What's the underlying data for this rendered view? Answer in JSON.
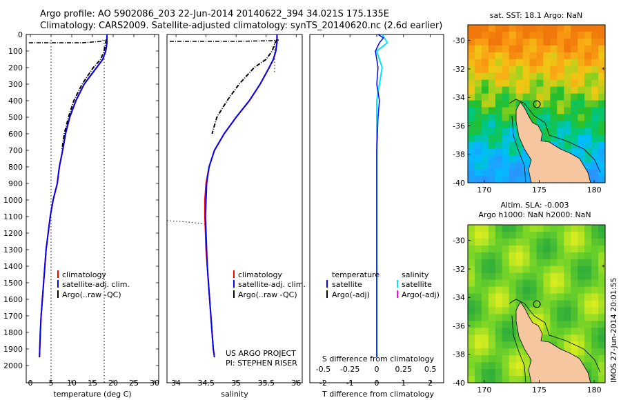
{
  "header": {
    "line1": "Argo profile: AO 5902086_203 22-Jun-2014 20140622_394 34.021S 175.135E",
    "line2": "Climatology: CARS2009. Satellite-adjusted climatology: synTS_20140620.nc (2.6d earlier)"
  },
  "depth_ticks": [
    "0",
    "100",
    "200",
    "300",
    "400",
    "500",
    "600",
    "700",
    "800",
    "900",
    "1000",
    "1100",
    "1200",
    "1300",
    "1400",
    "1500",
    "1600",
    "1700",
    "1800",
    "1900",
    "2000"
  ],
  "colors": {
    "clim": "#ff0000",
    "sat": "#0000ff",
    "argo": "#000000",
    "sat_sal": "#00e5ff",
    "argo_sal": "#ff00ff",
    "land": "#f5c6a0"
  },
  "panels": {
    "temperature": {
      "xlabel": "temperature (deg C)",
      "ticks": [
        "0",
        "5",
        "10",
        "15",
        "20",
        "25",
        "30"
      ],
      "legend": [
        "climatology",
        "satellite-adj. clim.",
        "Argo(..raw -QC)"
      ]
    },
    "salinity": {
      "xlabel": "salinity",
      "ticks": [
        "34",
        "34.5",
        "35",
        "35.5",
        "36"
      ],
      "legend": [
        "climatology",
        "satellite-adj. clim.",
        "Argo(..raw -QC)"
      ],
      "project": "US ARGO PROJECT",
      "pi": "PI: STEPHEN RISER"
    },
    "difference": {
      "xlabel": "T difference from climatology",
      "top_label": "S difference from climatology",
      "s_ticks": [
        "-0.5",
        "-0.25",
        "0",
        "0.25",
        "0.5"
      ],
      "t_ticks": [
        "-2",
        "-1",
        "0",
        "1",
        "2"
      ],
      "leg_head_t": "temperature",
      "leg_head_s": "salinity",
      "leg_t": [
        "satellite",
        "Argo(-adj)"
      ],
      "leg_s": [
        "satellite",
        "Argo(-adj)"
      ]
    }
  },
  "maps": {
    "sst_title": "sat. SST: 18.1  Argo: NaN",
    "sla_title1": "Altim. SLA: -0.003",
    "sla_title2": "Argo h1000: NaN h2000: NaN",
    "lat_ticks": [
      "-30",
      "-32",
      "-34",
      "-36",
      "-38",
      "-40"
    ],
    "lon_ticks": [
      "170",
      "175",
      "180"
    ],
    "stamp": "IMOS 27-Jun-2014 20:01:55"
  },
  "chart_data": [
    {
      "type": "line",
      "title": "",
      "xlabel": "temperature (deg C)",
      "ylabel": "",
      "xlim": [
        -1,
        31
      ],
      "ylim": [
        2050,
        0
      ],
      "series": [
        {
          "name": "climatology",
          "x": [
            18.5,
            18.5,
            18.2,
            17.5,
            16.0,
            13.0,
            11.0,
            9.5,
            8.5,
            7.8,
            7.0,
            6.5,
            5.5,
            4.8,
            4.3,
            3.8,
            3.5,
            3.2,
            2.9,
            2.6,
            2.4,
            2.2
          ],
          "y": [
            0,
            50,
            100,
            150,
            200,
            300,
            400,
            500,
            600,
            700,
            800,
            900,
            1000,
            1100,
            1200,
            1300,
            1400,
            1500,
            1600,
            1700,
            1800,
            1950
          ]
        },
        {
          "name": "satellite-adj. clim.",
          "x": [
            18.5,
            18.5,
            18.2,
            17.5,
            16.0,
            13.0,
            11.0,
            9.5,
            8.5,
            7.8,
            7.0,
            6.5,
            5.5,
            4.8,
            4.3,
            3.8,
            3.5,
            3.2,
            2.9,
            2.6,
            2.4,
            2.2
          ],
          "y": [
            0,
            50,
            100,
            150,
            200,
            300,
            400,
            500,
            600,
            700,
            800,
            900,
            1000,
            1100,
            1200,
            1300,
            1400,
            1500,
            1600,
            1700,
            1800,
            1950
          ]
        },
        {
          "name": "Argo(..raw -QC)",
          "x": [
            18.3,
            18.2,
            17.8,
            17.0,
            15.2,
            12.5,
            10.5,
            9.2,
            8.2,
            7.6
          ],
          "y": [
            30,
            50,
            100,
            150,
            200,
            300,
            400,
            500,
            600,
            700
          ]
        }
      ]
    },
    {
      "type": "line",
      "title": "",
      "xlabel": "salinity",
      "ylabel": "",
      "xlim": [
        33.85,
        36.1
      ],
      "ylim": [
        2050,
        0
      ],
      "series": [
        {
          "name": "climatology",
          "x": [
            35.68,
            35.68,
            35.66,
            35.62,
            35.55,
            35.4,
            35.22,
            35.0,
            34.8,
            34.64,
            34.55,
            34.5,
            34.48,
            34.48,
            34.49,
            34.5,
            34.52,
            34.54,
            34.56,
            34.58,
            34.6,
            34.62,
            34.64
          ],
          "y": [
            0,
            50,
            100,
            150,
            200,
            300,
            400,
            500,
            600,
            700,
            800,
            900,
            1000,
            1100,
            1200,
            1300,
            1400,
            1500,
            1600,
            1700,
            1800,
            1900,
            1950
          ]
        },
        {
          "name": "satellite-adj. clim.",
          "x": [
            35.68,
            35.68,
            35.66,
            35.62,
            35.55,
            35.4,
            35.22,
            35.0,
            34.8,
            34.64,
            34.55,
            34.51,
            34.5,
            34.49,
            34.5,
            34.51,
            34.52,
            34.54,
            34.56,
            34.58,
            34.6,
            34.62,
            34.64
          ],
          "y": [
            0,
            50,
            100,
            150,
            200,
            300,
            400,
            500,
            600,
            700,
            800,
            900,
            1000,
            1100,
            1200,
            1300,
            1400,
            1500,
            1600,
            1700,
            1800,
            1900,
            1950
          ]
        },
        {
          "name": "Argo(..raw -QC)",
          "x": [
            35.68,
            35.65,
            35.6,
            35.5,
            35.3,
            35.05,
            34.85,
            34.68,
            34.6
          ],
          "y": [
            30,
            50,
            100,
            150,
            200,
            300,
            400,
            500,
            600
          ]
        }
      ]
    },
    {
      "type": "line",
      "title": "",
      "xlabel": "T difference from climatology",
      "ylabel": "",
      "xlim": [
        -2.5,
        2.5
      ],
      "ylim": [
        2050,
        0
      ],
      "series": [
        {
          "name": "satellite",
          "x": [
            0.05,
            0.25,
            0.1,
            -0.05,
            0.05,
            0.0,
            0.1,
            0.05,
            0.0,
            0.0,
            0.0,
            0.0
          ],
          "y": [
            0,
            20,
            50,
            100,
            200,
            300,
            400,
            500,
            700,
            1000,
            1500,
            1950
          ]
        },
        {
          "name": "satellite",
          "x": [
            0.05,
            0.1,
            0.0,
            0.05,
            0.0,
            0.0,
            0.0,
            0.0
          ],
          "y": [
            0,
            50,
            100,
            200,
            400,
            700,
            1200,
            1950
          ]
        }
      ]
    }
  ]
}
